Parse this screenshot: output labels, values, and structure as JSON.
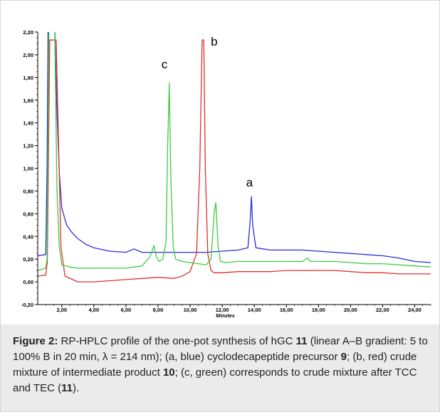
{
  "chart_data": {
    "type": "line",
    "title": "",
    "xlabel": "Minutes",
    "ylabel": "",
    "xlim": [
      0.5,
      25.0
    ],
    "ylim": [
      -0.2,
      2.2
    ],
    "grid": false,
    "x_ticks": [
      2,
      4,
      6,
      8,
      10,
      12,
      14,
      16,
      18,
      20,
      22,
      24
    ],
    "x_tick_labels": [
      "2,00",
      "4,00",
      "6,00",
      "8,00",
      "10,00",
      "12,00",
      "14,00",
      "16,00",
      "18,00",
      "20,00",
      "22,00",
      "24,00"
    ],
    "y_ticks": [
      -0.2,
      0.0,
      0.2,
      0.4,
      0.6,
      0.8,
      1.0,
      1.2,
      1.4,
      1.6,
      1.8,
      2.0,
      2.2
    ],
    "y_tick_labels": [
      "-0,20",
      "0,00",
      "0,20",
      "0,40",
      "0,60",
      "0,80",
      "1,00",
      "1,20",
      "1,40",
      "1,60",
      "1,80",
      "2,00",
      "2,20"
    ],
    "series": [
      {
        "label": "a",
        "color": "#2d2dd6",
        "x": [
          0.5,
          1.0,
          1.08,
          1.15,
          1.4,
          1.55,
          1.7,
          1.85,
          2.0,
          2.3,
          2.6,
          3.0,
          3.5,
          4.0,
          5.0,
          6.0,
          6.5,
          7.0,
          8.0,
          9.0,
          10.0,
          11.0,
          12.0,
          13.0,
          13.6,
          13.75,
          13.82,
          13.9,
          14.1,
          15.0,
          16.0,
          17.0,
          18.0,
          19.0,
          20.0,
          21.0,
          22.0,
          23.0,
          24.0,
          25.0
        ],
        "y": [
          0.23,
          0.24,
          1.0,
          2.3,
          2.3,
          2.3,
          1.5,
          0.95,
          0.65,
          0.5,
          0.44,
          0.38,
          0.33,
          0.3,
          0.27,
          0.26,
          0.29,
          0.26,
          0.26,
          0.26,
          0.26,
          0.26,
          0.27,
          0.28,
          0.3,
          0.55,
          0.75,
          0.5,
          0.3,
          0.28,
          0.28,
          0.28,
          0.27,
          0.26,
          0.25,
          0.24,
          0.23,
          0.21,
          0.18,
          0.17
        ]
      },
      {
        "label": "b",
        "color": "#e03030",
        "x": [
          0.5,
          1.0,
          1.1,
          1.25,
          1.4,
          1.5,
          1.65,
          1.8,
          1.95,
          2.2,
          3.0,
          4.0,
          5.0,
          6.0,
          7.0,
          8.0,
          9.0,
          9.5,
          10.0,
          10.4,
          10.6,
          10.75,
          10.85,
          10.95,
          11.1,
          11.3,
          11.5,
          12.0,
          13.0,
          14.0,
          15.0,
          16.0,
          17.0,
          18.0,
          19.0,
          20.0,
          21.0,
          22.0,
          23.0,
          24.0,
          25.0
        ],
        "y": [
          0.05,
          0.06,
          0.18,
          2.13,
          2.13,
          2.13,
          2.13,
          1.2,
          0.3,
          0.05,
          0.0,
          0.0,
          0.01,
          0.02,
          0.03,
          0.04,
          0.03,
          0.05,
          0.09,
          0.25,
          1.0,
          2.13,
          2.13,
          1.0,
          0.25,
          0.1,
          0.08,
          0.08,
          0.09,
          0.09,
          0.09,
          0.1,
          0.1,
          0.1,
          0.1,
          0.09,
          0.08,
          0.08,
          0.07,
          0.07,
          0.07
        ]
      },
      {
        "label": "c",
        "color": "#3ccc3c",
        "x": [
          0.5,
          1.0,
          1.08,
          1.2,
          1.4,
          1.55,
          1.7,
          1.85,
          2.0,
          2.5,
          3.0,
          4.0,
          5.0,
          6.0,
          7.0,
          7.5,
          7.75,
          7.9,
          8.05,
          8.3,
          8.5,
          8.6,
          8.7,
          8.8,
          8.95,
          9.1,
          9.5,
          10.0,
          10.5,
          11.0,
          11.3,
          11.5,
          11.6,
          11.75,
          11.9,
          12.2,
          13.0,
          14.0,
          15.0,
          16.0,
          17.0,
          17.3,
          17.5,
          18.0,
          19.0,
          20.0,
          21.0,
          22.0,
          23.0,
          24.0,
          25.0
        ],
        "y": [
          0.1,
          0.12,
          0.2,
          2.3,
          2.3,
          2.3,
          0.8,
          0.3,
          0.15,
          0.13,
          0.12,
          0.12,
          0.12,
          0.12,
          0.14,
          0.22,
          0.32,
          0.22,
          0.18,
          0.2,
          0.35,
          1.2,
          1.75,
          0.9,
          0.3,
          0.2,
          0.18,
          0.17,
          0.16,
          0.15,
          0.2,
          0.6,
          0.7,
          0.3,
          0.18,
          0.17,
          0.18,
          0.18,
          0.18,
          0.18,
          0.18,
          0.21,
          0.18,
          0.18,
          0.18,
          0.17,
          0.16,
          0.16,
          0.15,
          0.14,
          0.13
        ]
      }
    ],
    "annotations": [
      {
        "text": "a",
        "x": 13.7,
        "y": 0.84
      },
      {
        "text": "b",
        "x": 11.5,
        "y": 2.08
      },
      {
        "text": "c",
        "x": 8.4,
        "y": 1.88
      }
    ]
  },
  "caption": {
    "fig_label": "Figure 2:",
    "t1": " RP-HPLC profile of the one-pot synthesis of hGC ",
    "b1": "11",
    "t2": " (linear A–B gradient: 5 to 100% B in 20 min, λ = 214 nm); (a, blue) cyclodecapeptide precursor ",
    "b2": "9",
    "t3": "; (b, red) crude mixture of intermediate product ",
    "b3": "10",
    "t4": "; (c, green) corresponds to crude mixture after TCC and TEC (",
    "b4": "11",
    "t5": ")."
  }
}
